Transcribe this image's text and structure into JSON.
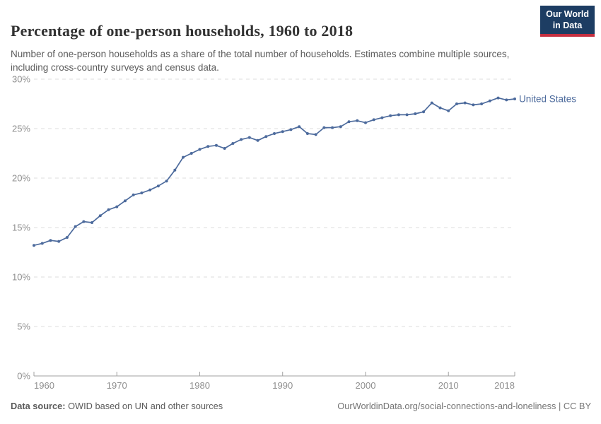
{
  "header": {
    "title": "Percentage of one-person households, 1960 to 2018",
    "subtitle": "Number of one-person households as a share of the total number of households. Estimates combine multiple sources, including cross-country surveys and census data.",
    "logo": {
      "line1": "Our World",
      "line2": "in Data"
    }
  },
  "chart_data": {
    "type": "line",
    "title": "Percentage of one-person households, 1960 to 2018",
    "xlabel": "",
    "ylabel": "",
    "xlim": [
      1960,
      2018
    ],
    "ylim": [
      0,
      30
    ],
    "x_ticks": [
      1960,
      1970,
      1980,
      1990,
      2000,
      2010,
      2018
    ],
    "y_ticks": [
      0,
      5,
      10,
      15,
      20,
      25,
      30
    ],
    "y_tick_suffix": "%",
    "grid": "horizontal-dashed",
    "legend_position": "end-of-line-label",
    "series": [
      {
        "name": "United States",
        "color": "#4c6a9c",
        "x": [
          1960,
          1961,
          1962,
          1963,
          1964,
          1965,
          1966,
          1967,
          1968,
          1969,
          1970,
          1971,
          1972,
          1973,
          1974,
          1975,
          1976,
          1977,
          1978,
          1979,
          1980,
          1981,
          1982,
          1983,
          1984,
          1985,
          1986,
          1987,
          1988,
          1989,
          1990,
          1991,
          1992,
          1993,
          1994,
          1995,
          1996,
          1997,
          1998,
          1999,
          2000,
          2001,
          2002,
          2003,
          2004,
          2005,
          2006,
          2007,
          2008,
          2009,
          2010,
          2011,
          2012,
          2013,
          2014,
          2015,
          2016,
          2017,
          2018
        ],
        "values": [
          13.2,
          13.4,
          13.7,
          13.6,
          14.0,
          15.1,
          15.6,
          15.5,
          16.2,
          16.8,
          17.1,
          17.7,
          18.3,
          18.5,
          18.8,
          19.2,
          19.7,
          20.8,
          22.1,
          22.5,
          22.9,
          23.2,
          23.3,
          23.0,
          23.5,
          23.9,
          24.1,
          23.8,
          24.2,
          24.5,
          24.7,
          24.9,
          25.2,
          24.5,
          24.4,
          25.1,
          25.1,
          25.2,
          25.7,
          25.8,
          25.6,
          25.9,
          26.1,
          26.3,
          26.4,
          26.4,
          26.5,
          26.7,
          27.6,
          27.1,
          26.8,
          27.5,
          27.6,
          27.4,
          27.5,
          27.8,
          28.1,
          27.9,
          28.0
        ]
      }
    ]
  },
  "footer": {
    "datasource_label": "Data source:",
    "datasource_value": " OWID based on UN and other sources",
    "url_text": "OurWorldinData.org/social-connections-and-loneliness",
    "separator": " | ",
    "license_text": "CC BY"
  },
  "colors": {
    "series_blue": "#4c6a9c",
    "logo_background": "#1d3d63",
    "logo_stripe": "#c52f40",
    "gridline": "#dddddd",
    "axis": "#a0a0a0",
    "tick_label": "#8f8f8f",
    "title_text": "#333333",
    "subtitle_text": "#5b5b5b"
  }
}
